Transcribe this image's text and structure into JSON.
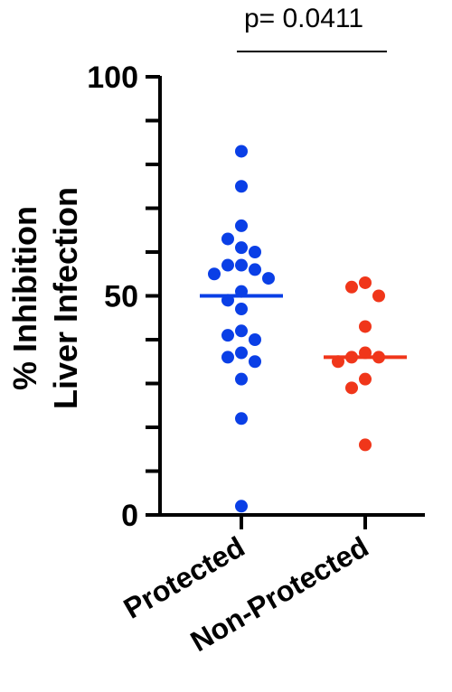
{
  "chart_data": {
    "type": "scatter",
    "ylabel_lines": [
      "% Inhibition",
      "Liver Infection"
    ],
    "ylim": [
      0,
      100
    ],
    "yticks": [
      0,
      50,
      100
    ],
    "categories": [
      "Protected",
      "Non-Protected"
    ],
    "series": [
      {
        "name": "Protected",
        "color": "#0a3fe6",
        "median": 50,
        "values": [
          83,
          75,
          66,
          63,
          61,
          60,
          57,
          57,
          56,
          55,
          54,
          51,
          49,
          47,
          42,
          41,
          40,
          37,
          36,
          35,
          31,
          22,
          2
        ]
      },
      {
        "name": "Non-Protected",
        "color": "#f0361a",
        "median": 36,
        "values": [
          53,
          52,
          50,
          43,
          37,
          36,
          36,
          35,
          31,
          29,
          16
        ]
      }
    ],
    "annotation": {
      "text": "p= 0.0411"
    }
  }
}
